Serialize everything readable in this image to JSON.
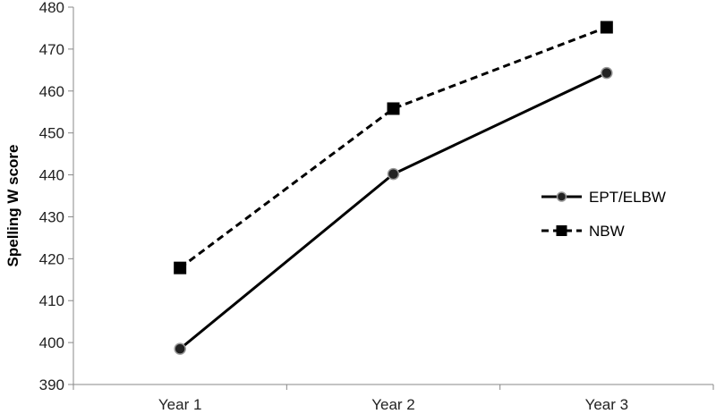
{
  "chart_data": {
    "type": "line",
    "title": "",
    "xlabel": "",
    "ylabel": "Spelling W score",
    "categories": [
      "Year 1",
      "Year 2",
      "Year 3"
    ],
    "ylim": [
      390,
      480
    ],
    "yticks": [
      390,
      400,
      410,
      420,
      430,
      440,
      450,
      460,
      470,
      480
    ],
    "grid": false,
    "legend_position": "right",
    "series": [
      {
        "name": "EPT/ELBW",
        "values": [
          398.5,
          440.2,
          464.3
        ],
        "line_style": "solid",
        "marker": "circle",
        "color": "#000000"
      },
      {
        "name": "NBW",
        "values": [
          417.8,
          455.8,
          475.2
        ],
        "line_style": "dashed",
        "marker": "square",
        "color": "#000000"
      }
    ]
  }
}
